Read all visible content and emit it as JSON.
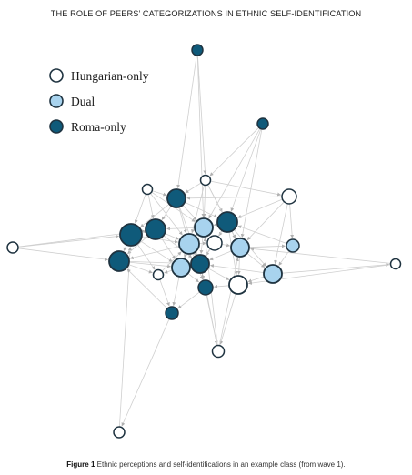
{
  "header": {
    "title": "THE ROLE OF PEERS’ CATEGORIZATIONS IN ETHNIC SELF-IDENTIFICATION"
  },
  "legend": [
    {
      "label": "Hungarian-only",
      "color": "#ffffff"
    },
    {
      "label": "Dual",
      "color": "#a8d3ee"
    },
    {
      "label": "Roma-only",
      "color": "#0f5a7a"
    }
  ],
  "colors": {
    "stroke": "#1f3340",
    "edge": "#cfcfcf",
    "arrow": "#b0b0b0"
  },
  "caption": {
    "label": "Figure 1",
    "text": "Ethnic perceptions and self-identifications in an example class (from wave 1)."
  }
}
